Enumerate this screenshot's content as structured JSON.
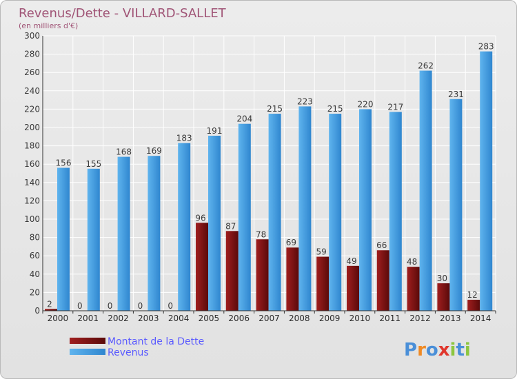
{
  "chart_data": {
    "type": "bar",
    "title": "Revenus/Dette - VILLARD-SALLET",
    "subtitle": "(en milliers d'€)",
    "categories": [
      "2000",
      "2001",
      "2002",
      "2003",
      "2004",
      "2005",
      "2006",
      "2007",
      "2008",
      "2009",
      "2010",
      "2011",
      "2012",
      "2013",
      "2014"
    ],
    "series": [
      {
        "name": "Montant de la Dette",
        "color": "#7a1414",
        "values": [
          2,
          0,
          0,
          0,
          0,
          96,
          87,
          78,
          69,
          59,
          49,
          66,
          48,
          30,
          12
        ]
      },
      {
        "name": "Revenus",
        "color": "#4fa3e0",
        "values": [
          156,
          155,
          168,
          169,
          183,
          191,
          204,
          215,
          223,
          215,
          220,
          217,
          262,
          231,
          283
        ]
      }
    ],
    "ylim": [
      0,
      300
    ],
    "yticks": [
      0,
      20,
      40,
      60,
      80,
      100,
      120,
      140,
      160,
      180,
      200,
      220,
      240,
      260,
      280,
      300
    ],
    "grid": true,
    "legend_position": "bottom-left"
  },
  "logo": {
    "text": "Proxiti",
    "colors": [
      "#4a8fd8",
      "#f08a24",
      "#4a8fd8",
      "#e0362c",
      "#8cc63f",
      "#4a8fd8",
      "#8cc63f"
    ]
  }
}
